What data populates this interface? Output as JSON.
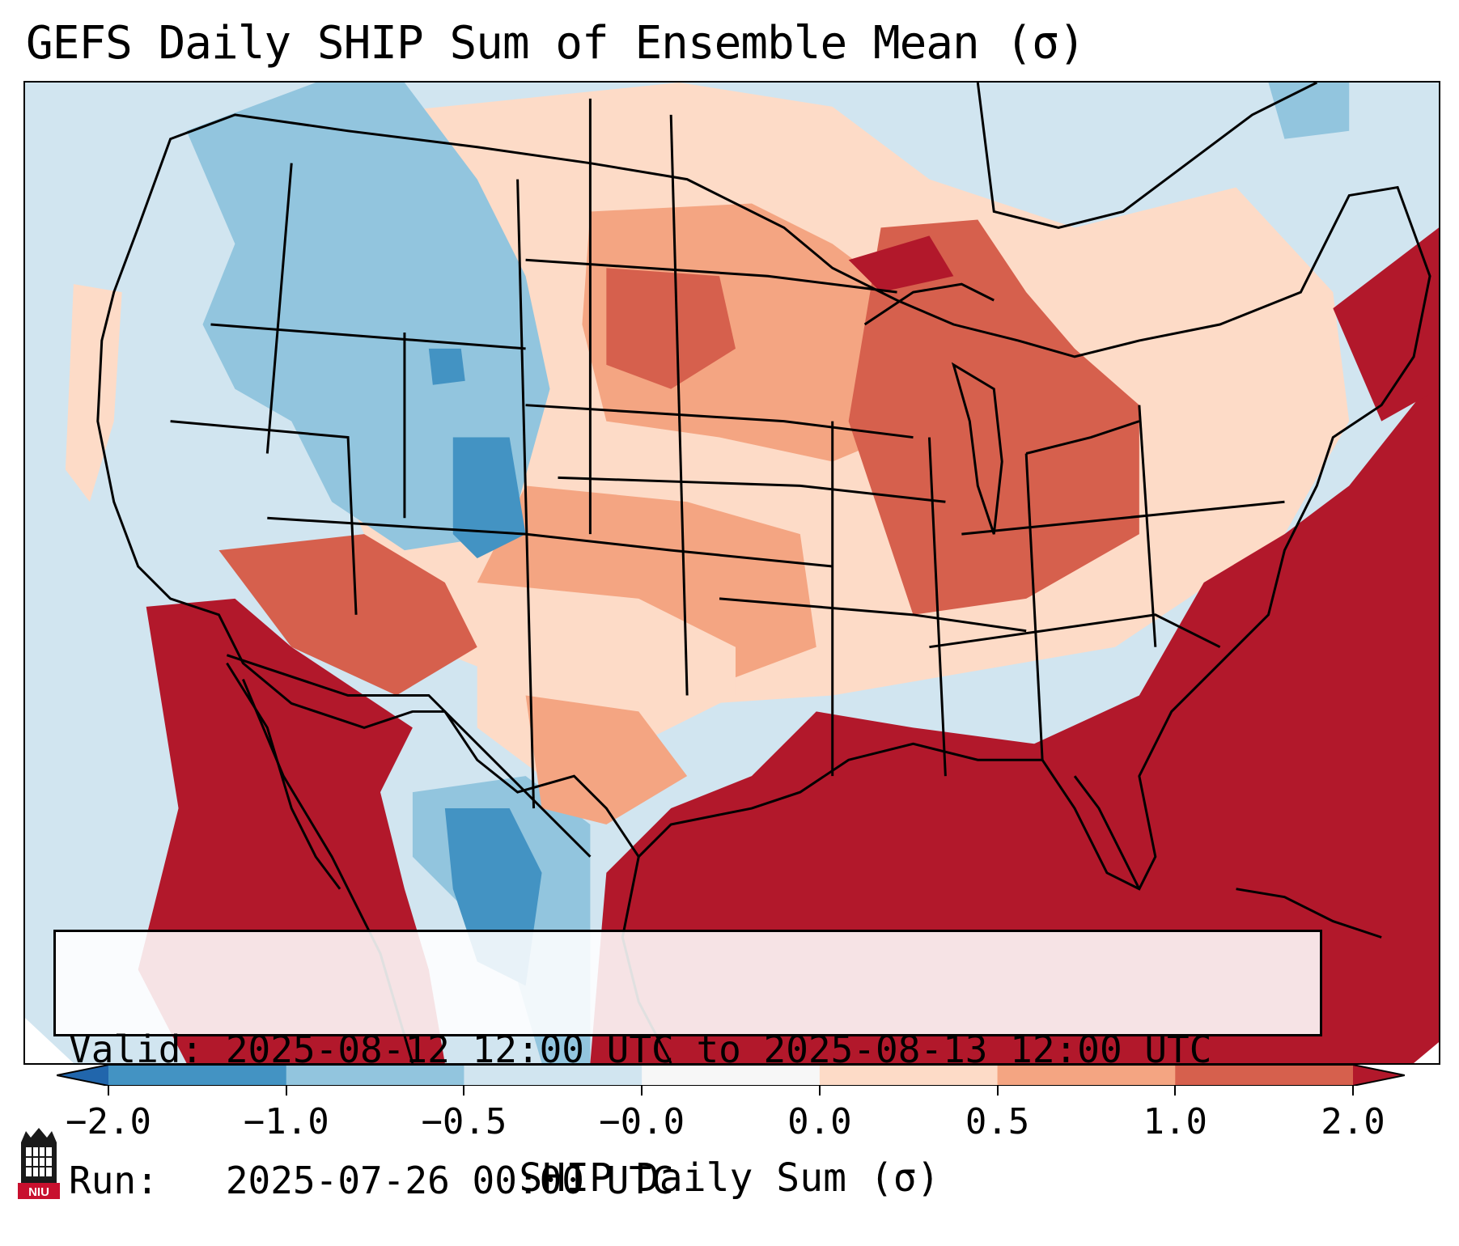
{
  "title": "GEFS Daily SHIP Sum of Ensemble Mean (σ)",
  "info": {
    "valid_line": "Valid: 2025-08-12 12:00 UTC to 2025-08-13 12:00 UTC",
    "run_line": "Run:   2025-07-26 00:00 UTC"
  },
  "colorbar": {
    "label": "SHIP Daily Sum (σ)",
    "tick_labels": [
      "−2.0",
      "−1.0",
      "−0.5",
      "−0.0",
      "0.0",
      "0.5",
      "1.0",
      "2.0"
    ],
    "bins": [
      {
        "from": "<-2.0",
        "color": "#2166ac"
      },
      {
        "from": "-2.0",
        "to": "-1.0",
        "color": "#4393c3"
      },
      {
        "from": "-1.0",
        "to": "-0.5",
        "color": "#92c5de"
      },
      {
        "from": "-0.5",
        "to": "-0.0",
        "color": "#d1e5f0"
      },
      {
        "from": "-0.0",
        "to": "0.0",
        "color": "#f7f7f7"
      },
      {
        "from": "0.0",
        "to": "0.5",
        "color": "#fddbc7"
      },
      {
        "from": "0.5",
        "to": "1.0",
        "color": "#f4a582"
      },
      {
        "from": "1.0",
        "to": "2.0",
        "color": "#d6604d"
      },
      {
        "from": ">2.0",
        "color": "#b2182b"
      }
    ]
  },
  "map": {
    "region": "Contiguous United States",
    "regions": [
      {
        "area": "Pacific Ocean / Canada / Atlantic north",
        "category": "-0.5 to -0.0"
      },
      {
        "area": "Idaho / Montana / Wyoming",
        "category": "-1.0 to -0.5"
      },
      {
        "area": "Western Colorado",
        "category": "-2.0 to -1.0"
      },
      {
        "area": "Northern Mexico (Chihuahua)",
        "category": "-2.0 to -1.0"
      },
      {
        "area": "Great Plains",
        "category": "0.0 to 0.5"
      },
      {
        "area": "Dakotas / Upper Midwest",
        "category": "0.5 to 1.0"
      },
      {
        "area": "Ohio Valley / Tennessee",
        "category": "1.0 to 2.0"
      },
      {
        "area": "Southwest / Gulf Coast / Southeast / Atlantic",
        "category": ">2.0"
      }
    ]
  },
  "logo_text": "NIU"
}
